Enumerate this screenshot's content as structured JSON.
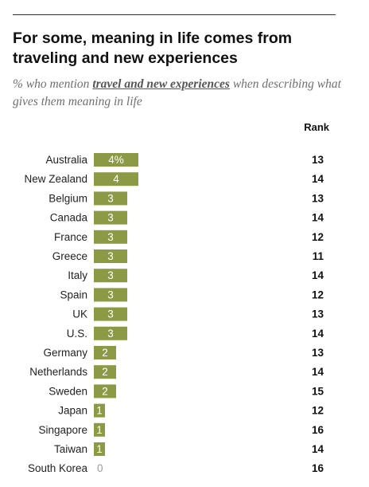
{
  "title": "For some, meaning in life comes from traveling and new experiences",
  "subtitle": {
    "prefix": "% who mention ",
    "highlight": "travel and new experiences",
    "suffix": " when describing what gives them meaning in life"
  },
  "rank_header": "Rank",
  "colors": {
    "bar": "#8c9a45",
    "bar_label": "#ffffff",
    "zero_label": "#999999"
  },
  "chart_data": {
    "type": "bar",
    "orientation": "horizontal",
    "categories": [
      "Australia",
      "New Zealand",
      "Belgium",
      "Canada",
      "France",
      "Greece",
      "Italy",
      "Spain",
      "UK",
      "U.S.",
      "Germany",
      "Netherlands",
      "Sweden",
      "Japan",
      "Singapore",
      "Taiwan",
      "South Korea"
    ],
    "values": [
      4,
      4,
      3,
      3,
      3,
      3,
      3,
      3,
      3,
      3,
      2,
      2,
      2,
      1,
      1,
      1,
      0
    ],
    "value_labels": [
      "4%",
      "4",
      "3",
      "3",
      "3",
      "3",
      "3",
      "3",
      "3",
      "3",
      "2",
      "2",
      "2",
      "1",
      "1",
      "1",
      "0"
    ],
    "ranks": [
      "13",
      "14",
      "13",
      "14",
      "12",
      "11",
      "14",
      "12",
      "13",
      "14",
      "13",
      "14",
      "15",
      "12",
      "16",
      "14",
      "16"
    ],
    "xlim": [
      0,
      4
    ],
    "title": "For some, meaning in life comes from traveling and new experiences",
    "xlabel": "",
    "ylabel": "",
    "grid": false
  }
}
